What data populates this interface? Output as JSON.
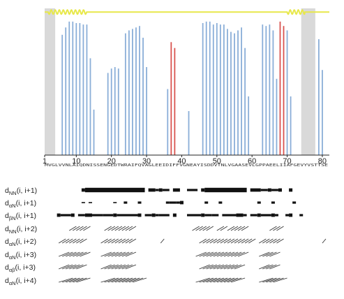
{
  "chart_data": {
    "type": "bar",
    "x_range": [
      1,
      82
    ],
    "x_ticks": [
      "1",
      "10",
      "20",
      "30",
      "40",
      "50",
      "60",
      "70",
      "80"
    ],
    "shaded_regions": [
      [
        1,
        4
      ],
      [
        74,
        78
      ]
    ],
    "grid": false,
    "sequence": "MVGLVVNLAIQDNISSENGEDTWRAIFQVAGLEEIDIFFVGNEAYISDDVTNLVGAASEVLGPPAEELIIAFGEVYVSTTSE",
    "bar_color_default": "#8aaed8",
    "bar_color_highlight": "#d9534f",
    "line_color": "#e7e84a",
    "shade_color": "#d9d9d9",
    "helix_wave_segments": [
      [
        2,
        13
      ],
      [
        70,
        75
      ]
    ],
    "line_level": 0.975,
    "series": [
      {
        "values": [
          0,
          0,
          0,
          0,
          0,
          0.82,
          0.87,
          0.91,
          0.91,
          0.9,
          0.9,
          0.89,
          0.89,
          0.66,
          0.31,
          0,
          0,
          0,
          0.56,
          0.59,
          0.6,
          0.59,
          0,
          0.83,
          0.85,
          0.86,
          0.87,
          0.88,
          0.8,
          0.6,
          0,
          0,
          0,
          0,
          0,
          0.45,
          0.77,
          0.73,
          0,
          0,
          0,
          0.3,
          0,
          0,
          0,
          0.9,
          0.91,
          0.91,
          0.89,
          0.9,
          0.89,
          0.89,
          0.86,
          0.84,
          0.83,
          0.85,
          0.87,
          0.73,
          0.4,
          0,
          0,
          0,
          0.89,
          0.88,
          0.89,
          0.85,
          0.52,
          0.91,
          0.88,
          0.85,
          0.4,
          0,
          0,
          0,
          0,
          0,
          0,
          0,
          0.79,
          0.58,
          0,
          0
        ]
      }
    ],
    "highlight_indices": [
      36,
      37,
      38,
      42,
      67,
      68
    ],
    "noe_rows": [
      {
        "label_main": "d",
        "label_sub": "NN",
        "label_suffix": "(i, i+1)",
        "kind": "bars",
        "blocks": [
          [
            12,
            12,
            3
          ],
          [
            13,
            29,
            4
          ],
          [
            31,
            32,
            3
          ],
          [
            33,
            33,
            2
          ],
          [
            34,
            34,
            3
          ],
          [
            35,
            36,
            2
          ],
          [
            38,
            39,
            3
          ],
          [
            42,
            44,
            2
          ],
          [
            46,
            46,
            3
          ],
          [
            47,
            58,
            4
          ],
          [
            60,
            62,
            3
          ],
          [
            63,
            64,
            2
          ],
          [
            65,
            65,
            3
          ],
          [
            66,
            67,
            2
          ],
          [
            68,
            68,
            3
          ],
          [
            71,
            71,
            3
          ]
        ]
      },
      {
        "label_main": "d",
        "label_sub": "αN",
        "label_suffix": "(i, i+1)",
        "kind": "bars",
        "blocks": [
          [
            12,
            12,
            1
          ],
          [
            14,
            14,
            1
          ],
          [
            21,
            21,
            1
          ],
          [
            24,
            24,
            2
          ],
          [
            28,
            28,
            2
          ],
          [
            36,
            36,
            2
          ],
          [
            37,
            38,
            2
          ],
          [
            39,
            39,
            2
          ],
          [
            40,
            40,
            3
          ],
          [
            47,
            47,
            2
          ],
          [
            51,
            51,
            2
          ],
          [
            62,
            62,
            2
          ],
          [
            66,
            66,
            2
          ],
          [
            72,
            72,
            2
          ]
        ]
      },
      {
        "label_main": "d",
        "label_sub": "βN",
        "label_suffix": "(i, i+1)",
        "kind": "bars",
        "blocks": [
          [
            5,
            5,
            3
          ],
          [
            6,
            8,
            2
          ],
          [
            9,
            9,
            3
          ],
          [
            11,
            12,
            2
          ],
          [
            13,
            14,
            3
          ],
          [
            15,
            17,
            2
          ],
          [
            18,
            20,
            2
          ],
          [
            21,
            21,
            3
          ],
          [
            22,
            27,
            2
          ],
          [
            28,
            28,
            3
          ],
          [
            30,
            31,
            2
          ],
          [
            32,
            32,
            3
          ],
          [
            33,
            33,
            2
          ],
          [
            34,
            36,
            2
          ],
          [
            38,
            38,
            3
          ],
          [
            42,
            45,
            2
          ],
          [
            46,
            46,
            3
          ],
          [
            47,
            48,
            2
          ],
          [
            49,
            50,
            2
          ],
          [
            52,
            55,
            2
          ],
          [
            56,
            57,
            3
          ],
          [
            58,
            58,
            2
          ],
          [
            60,
            61,
            2
          ],
          [
            62,
            62,
            3
          ],
          [
            63,
            65,
            2
          ],
          [
            66,
            66,
            3
          ],
          [
            67,
            67,
            2
          ],
          [
            70,
            70,
            2
          ],
          [
            71,
            71,
            3
          ],
          [
            74,
            74,
            2
          ]
        ]
      },
      {
        "label_main": "d",
        "label_sub": "NN",
        "label_suffix": "(i, i+2)",
        "kind": "slants",
        "segments": [
          [
            8,
            10
          ],
          [
            9,
            11
          ],
          [
            10,
            12
          ],
          [
            11,
            13
          ],
          [
            12,
            14
          ],
          [
            18,
            20
          ],
          [
            19,
            21
          ],
          [
            20,
            22
          ],
          [
            21,
            23
          ],
          [
            22,
            24
          ],
          [
            23,
            25
          ],
          [
            24,
            26
          ],
          [
            25,
            27
          ],
          [
            43,
            45
          ],
          [
            44,
            46
          ],
          [
            45,
            47
          ],
          [
            46,
            48
          ],
          [
            47,
            49
          ],
          [
            50,
            52
          ],
          [
            51,
            53
          ],
          [
            53,
            55
          ],
          [
            54,
            56
          ],
          [
            55,
            57
          ],
          [
            56,
            58
          ],
          [
            57,
            59
          ],
          [
            65,
            67
          ],
          [
            66,
            68
          ],
          [
            67,
            69
          ]
        ]
      },
      {
        "label_main": "d",
        "label_sub": "αN",
        "label_suffix": "(i, i+2)",
        "kind": "slants",
        "segments": [
          [
            5,
            7
          ],
          [
            6,
            8
          ],
          [
            7,
            9
          ],
          [
            8,
            10
          ],
          [
            9,
            11
          ],
          [
            10,
            12
          ],
          [
            11,
            13
          ],
          [
            17,
            19
          ],
          [
            18,
            20
          ],
          [
            19,
            21
          ],
          [
            20,
            22
          ],
          [
            21,
            23
          ],
          [
            22,
            24
          ],
          [
            23,
            25
          ],
          [
            24,
            26
          ],
          [
            25,
            27
          ],
          [
            34,
            35
          ],
          [
            45,
            47
          ],
          [
            46,
            48
          ],
          [
            47,
            49
          ],
          [
            48,
            50
          ],
          [
            49,
            51
          ],
          [
            50,
            52
          ],
          [
            51,
            53
          ],
          [
            52,
            54
          ],
          [
            53,
            55
          ],
          [
            54,
            56
          ],
          [
            55,
            57
          ],
          [
            56,
            58
          ],
          [
            57,
            59
          ],
          [
            58,
            60
          ],
          [
            59,
            61
          ],
          [
            62,
            64
          ],
          [
            63,
            65
          ],
          [
            64,
            66
          ],
          [
            65,
            67
          ],
          [
            66,
            68
          ],
          [
            67,
            69
          ],
          [
            80,
            81
          ]
        ]
      },
      {
        "label_main": "d",
        "label_sub": "αN",
        "label_suffix": "(i, i+3)",
        "kind": "slants",
        "segments": [
          [
            5,
            8
          ],
          [
            6,
            9
          ],
          [
            7,
            10
          ],
          [
            8,
            11
          ],
          [
            9,
            12
          ],
          [
            10,
            13
          ],
          [
            11,
            14
          ],
          [
            17,
            20
          ],
          [
            18,
            21
          ],
          [
            19,
            22
          ],
          [
            20,
            23
          ],
          [
            21,
            24
          ],
          [
            22,
            25
          ],
          [
            23,
            26
          ],
          [
            24,
            27
          ],
          [
            44,
            47
          ],
          [
            45,
            48
          ],
          [
            46,
            49
          ],
          [
            47,
            50
          ],
          [
            48,
            51
          ],
          [
            49,
            52
          ],
          [
            50,
            53
          ],
          [
            51,
            54
          ],
          [
            52,
            55
          ],
          [
            53,
            56
          ],
          [
            54,
            57
          ],
          [
            55,
            58
          ],
          [
            56,
            59
          ],
          [
            62,
            65
          ],
          [
            63,
            66
          ],
          [
            64,
            67
          ],
          [
            65,
            68
          ]
        ]
      },
      {
        "label_main": "d",
        "label_sub": "αβ",
        "label_suffix": "(i, i+3)",
        "kind": "slants",
        "segments": [
          [
            5,
            8
          ],
          [
            6,
            9
          ],
          [
            7,
            10
          ],
          [
            8,
            11
          ],
          [
            9,
            12
          ],
          [
            10,
            13
          ],
          [
            17,
            20
          ],
          [
            18,
            21
          ],
          [
            19,
            22
          ],
          [
            20,
            23
          ],
          [
            21,
            24
          ],
          [
            22,
            25
          ],
          [
            23,
            26
          ],
          [
            24,
            27
          ],
          [
            45,
            48
          ],
          [
            46,
            49
          ],
          [
            47,
            50
          ],
          [
            48,
            51
          ],
          [
            49,
            52
          ],
          [
            50,
            53
          ],
          [
            51,
            54
          ],
          [
            52,
            55
          ],
          [
            53,
            56
          ],
          [
            54,
            57
          ],
          [
            55,
            58
          ],
          [
            62,
            65
          ],
          [
            63,
            66
          ],
          [
            64,
            67
          ],
          [
            65,
            68
          ]
        ]
      },
      {
        "label_main": "d",
        "label_sub": "αN",
        "label_suffix": "(i, i+4)",
        "kind": "slants",
        "segments": [
          [
            5,
            9
          ],
          [
            6,
            10
          ],
          [
            7,
            11
          ],
          [
            8,
            12
          ],
          [
            9,
            13
          ],
          [
            10,
            14
          ],
          [
            17,
            21
          ],
          [
            18,
            22
          ],
          [
            19,
            23
          ],
          [
            20,
            24
          ],
          [
            21,
            25
          ],
          [
            22,
            26
          ],
          [
            23,
            27
          ],
          [
            24,
            28
          ],
          [
            25,
            29
          ],
          [
            26,
            30
          ],
          [
            44,
            48
          ],
          [
            45,
            49
          ],
          [
            46,
            50
          ],
          [
            47,
            51
          ],
          [
            48,
            52
          ],
          [
            49,
            53
          ],
          [
            50,
            54
          ],
          [
            51,
            55
          ],
          [
            52,
            56
          ],
          [
            53,
            57
          ],
          [
            54,
            58
          ],
          [
            62,
            66
          ],
          [
            63,
            67
          ],
          [
            64,
            68
          ],
          [
            65,
            69
          ],
          [
            66,
            70
          ]
        ]
      }
    ]
  }
}
